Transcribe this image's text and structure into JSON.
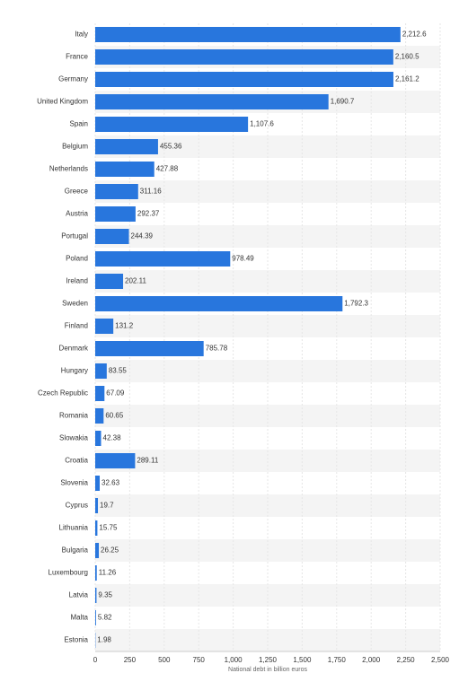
{
  "chart_data": {
    "type": "bar",
    "orientation": "horizontal",
    "x_label": "National debt in billion euros",
    "categories": [
      "Italy",
      "France",
      "Germany",
      "United Kingdom",
      "Spain",
      "Belgium",
      "Netherlands",
      "Greece",
      "Austria",
      "Portugal",
      "Poland",
      "Ireland",
      "Sweden",
      "Finland",
      "Denmark",
      "Hungary",
      "Czech Republic",
      "Romania",
      "Slowakia",
      "Croatia",
      "Slovenia",
      "Cyprus",
      "Lithuania",
      "Bulgaria",
      "Luxembourg",
      "Latvia",
      "Malta",
      "Estonia"
    ],
    "values": [
      2212.6,
      2160.5,
      2161.2,
      1690.7,
      1107.6,
      455.36,
      427.88,
      311.16,
      292.37,
      244.39,
      978.49,
      202.11,
      1792.3,
      131.2,
      785.78,
      83.55,
      67.09,
      60.65,
      42.38,
      289.11,
      32.63,
      19.7,
      15.75,
      26.25,
      11.26,
      9.35,
      5.82,
      1.98
    ],
    "value_labels": [
      "2,212.6",
      "2,160.5",
      "2,161.2",
      "1,690.7",
      "1,107.6",
      "455.36",
      "427.88",
      "311.16",
      "292.37",
      "244.39",
      "978.49",
      "202.11",
      "1,792.3",
      "131.2",
      "785.78",
      "83.55",
      "67.09",
      "60.65",
      "42.38",
      "289.11",
      "32.63",
      "19.7",
      "15.75",
      "26.25",
      "11.26",
      "9.35",
      "5.82",
      "1.98"
    ],
    "color": "#2876dd",
    "xlim": [
      0,
      2500
    ],
    "xticks": [
      0,
      250,
      500,
      750,
      {
        "value": 1000,
        "label": "1,000"
      },
      {
        "value": 1250,
        "label": "1,250"
      },
      {
        "value": 1500,
        "label": "1,500"
      },
      {
        "value": 1750,
        "label": "1,750"
      },
      {
        "value": 2000,
        "label": "2,000"
      },
      {
        "value": 2250,
        "label": "2,250"
      },
      {
        "value": 2500,
        "label": "2,500"
      }
    ],
    "grid": true
  }
}
